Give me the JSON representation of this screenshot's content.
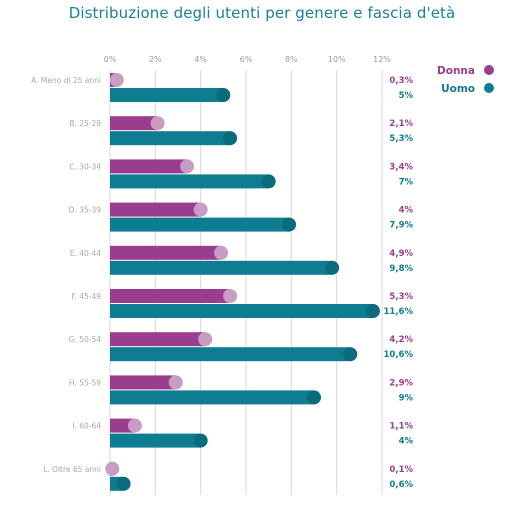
{
  "chart_data": {
    "type": "bar",
    "title": "Distribuzione degli utenti per genere e fascia d'età",
    "categories": [
      "A. Meno di 25 anni",
      "B. 25-29",
      "C. 30-34",
      "D. 35-39",
      "E. 40-44",
      "F. 45-49",
      "G. 50-54",
      "H. 55-59",
      "I. 60-64",
      "L. Oltre 65 anni"
    ],
    "series": [
      {
        "name": "Donna",
        "values": [
          0.3,
          2.1,
          3.4,
          4,
          4.9,
          5.3,
          4.2,
          2.9,
          1.1,
          0.1
        ],
        "labels": [
          "0,3%",
          "2,1%",
          "3,4%",
          "4%",
          "4,9%",
          "5,3%",
          "4,2%",
          "2,9%",
          "1,1%",
          "0,1%"
        ],
        "color": "#9b3d8f",
        "cap_color": "#c89dc4"
      },
      {
        "name": "Uomo",
        "values": [
          5,
          5.3,
          7,
          7.9,
          9.8,
          11.6,
          10.6,
          9,
          4,
          0.6
        ],
        "labels": [
          "5%",
          "5,3%",
          "7%",
          "7,9%",
          "9,8%",
          "11,6%",
          "10,6%",
          "9%",
          "4%",
          "0,6%"
        ],
        "color": "#0e7d91",
        "cap_color": "#0a6b7c"
      }
    ],
    "x_ticks": [
      "0%",
      "2%",
      "4%",
      "6%",
      "8%",
      "10%",
      "12%"
    ],
    "xlim": [
      0,
      12
    ],
    "grid": true,
    "legend_position": "top-right"
  }
}
